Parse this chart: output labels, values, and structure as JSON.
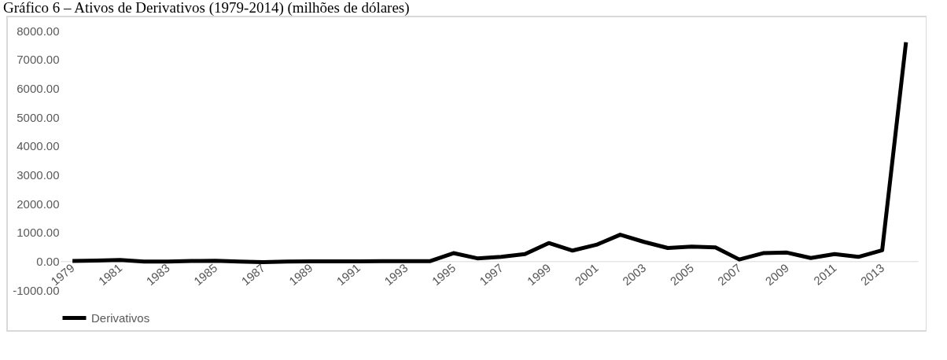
{
  "chart_data": {
    "type": "line",
    "title": "Gráfico 6 – Ativos de Derivativos (1979-2014) (milhões de dólares)",
    "categories": [
      "1979",
      null,
      "1981",
      null,
      "1983",
      null,
      "1985",
      null,
      "1987",
      null,
      "1989",
      null,
      "1991",
      null,
      "1993",
      null,
      "1995",
      null,
      "1997",
      null,
      "1999",
      null,
      "2001",
      null,
      "2003",
      null,
      "2005",
      null,
      "2007",
      null,
      "2009",
      null,
      "2011",
      null,
      "2013",
      null
    ],
    "series": [
      {
        "name": "Derivativos",
        "color": "#000000",
        "values": [
          10,
          20,
          40,
          -10,
          -10,
          10,
          15,
          -10,
          -30,
          -10,
          -5,
          -5,
          -5,
          0,
          0,
          0,
          280,
          100,
          150,
          250,
          630,
          370,
          570,
          920,
          670,
          460,
          510,
          480,
          60,
          280,
          300,
          110,
          250,
          150,
          380,
          7600
        ]
      }
    ],
    "ylim": [
      -1000,
      8000
    ],
    "yticks": [
      {
        "value": -1000,
        "label": "-1000.00"
      },
      {
        "value": 0,
        "label": "0.00"
      },
      {
        "value": 1000,
        "label": "1000.00"
      },
      {
        "value": 2000,
        "label": "2000.00"
      },
      {
        "value": 3000,
        "label": "3000.00"
      },
      {
        "value": 4000,
        "label": "4000.00"
      },
      {
        "value": 5000,
        "label": "5000.00"
      },
      {
        "value": 6000,
        "label": "6000.00"
      },
      {
        "value": 7000,
        "label": "7000.00"
      },
      {
        "value": 8000,
        "label": "8000.00"
      }
    ],
    "legend": "bottom",
    "line_style": "solid"
  }
}
